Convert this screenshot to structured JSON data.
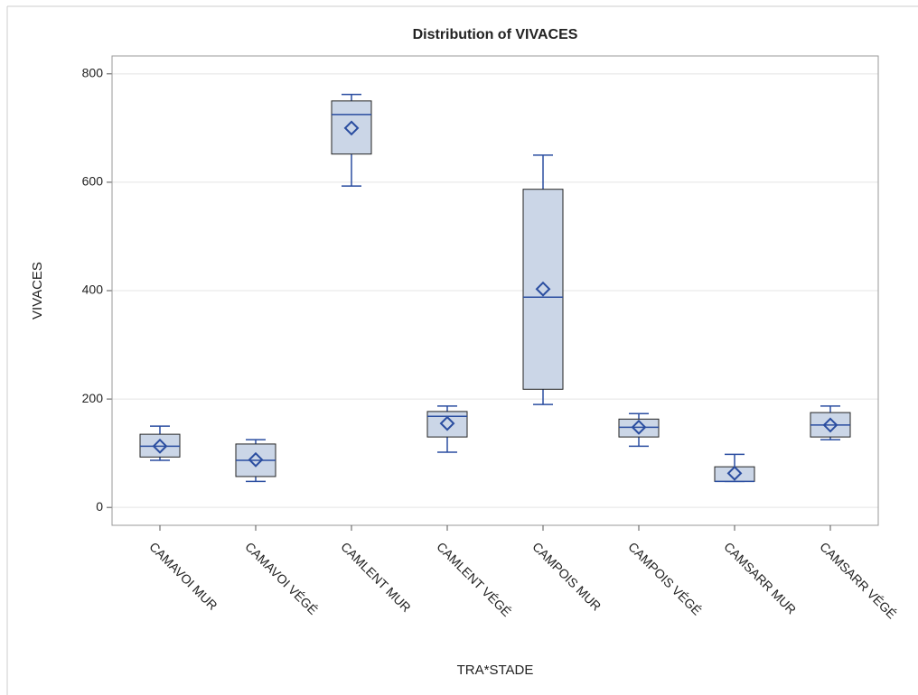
{
  "chart_data": {
    "type": "box",
    "title": "Distribution of VIVACES",
    "x_label": "TRA*STADE",
    "y_label": "VIVACES",
    "categories": [
      "CAMAVOI MUR",
      "CAMAVOI VÉGÉ",
      "CAMLENT MUR",
      "CAMLENT VÉGÉ",
      "CAMPOIS MUR",
      "CAMPOIS VÉGÉ",
      "CAMSARR MUR",
      "CAMSARR VÉGÉ"
    ],
    "series": [
      {
        "color": "#2a4da0",
        "fill": "#cbd6e7",
        "min": [
          87,
          48,
          593,
          102,
          190,
          113,
          48,
          125
        ],
        "q1": [
          93,
          57,
          652,
          130,
          218,
          130,
          48,
          130
        ],
        "median": [
          113,
          87,
          725,
          168,
          388,
          148,
          48,
          152
        ],
        "q3": [
          135,
          117,
          750,
          177,
          587,
          163,
          75,
          175
        ],
        "max": [
          150,
          125,
          762,
          187,
          650,
          173,
          98,
          187
        ],
        "mean": [
          113,
          88,
          700,
          155,
          403,
          148,
          63,
          152
        ]
      }
    ],
    "ylim": [
      -33,
      833
    ],
    "yticks": [
      0,
      200,
      400,
      600,
      800
    ],
    "grid": true
  }
}
